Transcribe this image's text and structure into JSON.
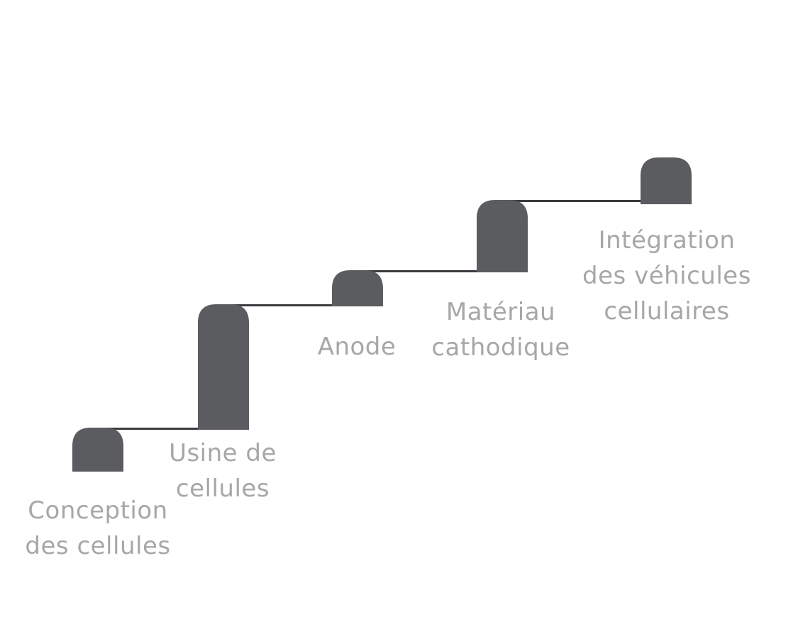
{
  "colors": {
    "pillar": "#5b5c60",
    "connector": "#3a3b3e",
    "label": "#a7a7a9",
    "background": "#ffffff"
  },
  "steps": [
    {
      "id": "cell-design",
      "lines": [
        "Conception",
        "des cellules"
      ]
    },
    {
      "id": "cell-factory",
      "lines": [
        "Usine de",
        "cellules"
      ]
    },
    {
      "id": "anode",
      "lines": [
        "Anode"
      ]
    },
    {
      "id": "cathode-material",
      "lines": [
        "Matériau",
        "cathodique"
      ]
    },
    {
      "id": "cell-vehicle-integration",
      "lines": [
        "Intégration",
        "des véhicules",
        "cellulaires"
      ]
    }
  ]
}
